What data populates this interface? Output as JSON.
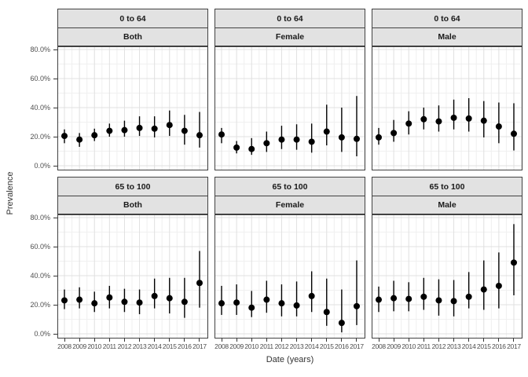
{
  "chart_data": {
    "type": "scatter",
    "title": "",
    "xlabel": "Date (years)",
    "ylabel": "Prevalence",
    "ylim": [
      0,
      80
    ],
    "grid": "on",
    "legend": "none",
    "y_tick_labels": [
      "0.0%",
      "20.0%",
      "40.0%",
      "60.0%",
      "80.0%"
    ],
    "y_tick_values": [
      0,
      20,
      40,
      60,
      80
    ],
    "x": [
      "2008",
      "2009",
      "2010",
      "2011",
      "2012",
      "2013",
      "2014",
      "2015",
      "2016",
      "2017"
    ],
    "facet_rows": [
      "0 to 64",
      "65 to 100"
    ],
    "facet_cols": [
      "Both",
      "Female",
      "Male"
    ],
    "point_color": "#000000",
    "errorbar_color": "#000000",
    "facets": [
      {
        "age_group": "0 to 64",
        "sex": "Both",
        "values": [
          20.5,
          18,
          21,
          24,
          24.5,
          26,
          25.5,
          28,
          24,
          21
        ],
        "ci_low": [
          15.5,
          13,
          17,
          20,
          20,
          20.5,
          19.5,
          20.5,
          14.5,
          12.5
        ],
        "ci_high": [
          25,
          22.5,
          25.5,
          29,
          31,
          34,
          34,
          38,
          35,
          37
        ]
      },
      {
        "age_group": "0 to 64",
        "sex": "Female",
        "values": [
          21.5,
          12.5,
          11.5,
          15.5,
          18,
          18,
          16.5,
          23.5,
          19.5,
          18.5
        ],
        "ci_low": [
          15.5,
          8.5,
          7.5,
          9.5,
          11.5,
          11,
          9,
          14,
          9.5,
          6.5
        ],
        "ci_high": [
          26,
          17,
          19,
          23.5,
          27.5,
          28.5,
          29,
          42,
          40,
          48
        ]
      },
      {
        "age_group": "0 to 64",
        "sex": "Male",
        "values": [
          19.5,
          22.5,
          29,
          32,
          30.5,
          33,
          32.5,
          31,
          27,
          22
        ],
        "ci_low": [
          14.5,
          16.5,
          21.5,
          25,
          23.5,
          25,
          23.5,
          19.5,
          15.5,
          10.5
        ],
        "ci_high": [
          26,
          31.5,
          37.5,
          40,
          41.5,
          45.5,
          46.5,
          44.5,
          43.5,
          43
        ]
      },
      {
        "age_group": "65 to 100",
        "sex": "Both",
        "values": [
          23,
          23.5,
          21,
          25,
          22,
          21.5,
          26,
          24.5,
          22,
          35
        ],
        "ci_low": [
          17,
          17.5,
          15,
          17.5,
          15,
          13.5,
          17.5,
          14,
          11,
          18
        ],
        "ci_high": [
          30.5,
          32,
          29,
          33,
          31,
          30.5,
          38,
          38.5,
          38.5,
          57
        ]
      },
      {
        "age_group": "65 to 100",
        "sex": "Female",
        "values": [
          21,
          21.5,
          18,
          23.5,
          21,
          19.5,
          26,
          15,
          7.5,
          19
        ],
        "ci_low": [
          13,
          13,
          11.5,
          14.5,
          12,
          12,
          15,
          5.5,
          1,
          6
        ],
        "ci_high": [
          33,
          34,
          29.5,
          36.5,
          34,
          36,
          43,
          38,
          30.5,
          50.5
        ]
      },
      {
        "age_group": "65 to 100",
        "sex": "Male",
        "values": [
          23.5,
          24.5,
          24,
          25.5,
          23,
          22.5,
          25.5,
          30.5,
          33,
          49
        ],
        "ci_low": [
          15,
          15.5,
          15.5,
          16.5,
          12.5,
          12,
          17.5,
          16.5,
          17.5,
          26.5
        ],
        "ci_high": [
          32.5,
          36.5,
          35.5,
          38.5,
          37.5,
          37,
          42.5,
          50.5,
          56,
          75.5
        ]
      }
    ]
  }
}
